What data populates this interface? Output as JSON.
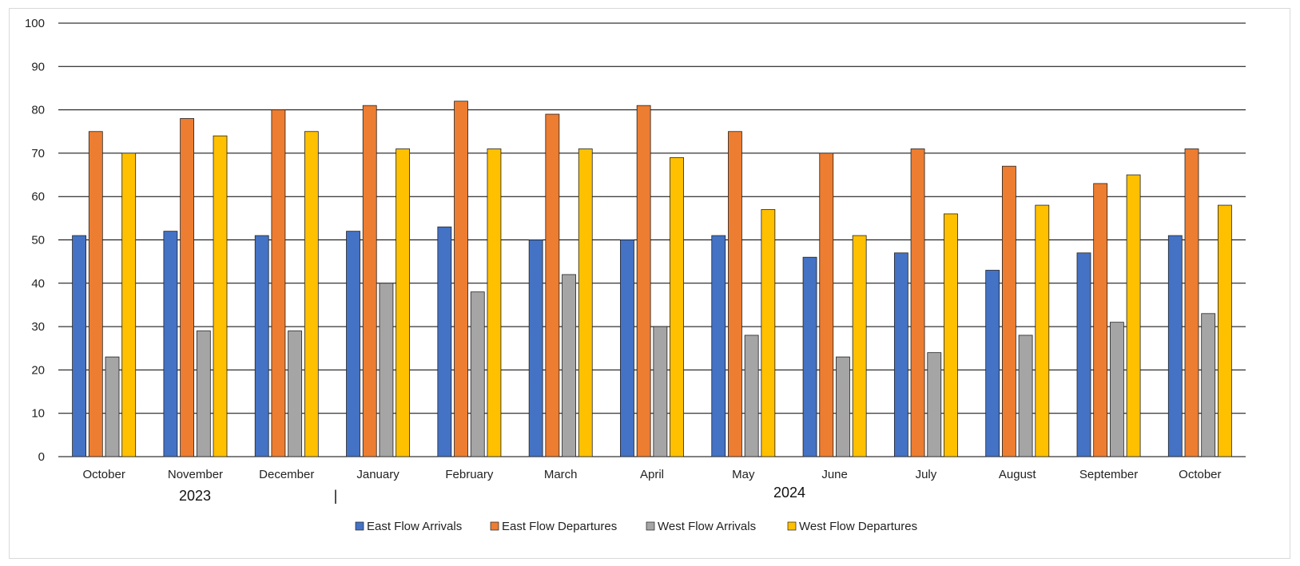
{
  "chart_data": {
    "type": "bar",
    "categories": [
      "October",
      "November",
      "December",
      "January",
      "February",
      "March",
      "April",
      "May",
      "June",
      "July",
      "August",
      "September",
      "October"
    ],
    "series": [
      {
        "name": "East Flow Arrivals",
        "color": "#4472c4",
        "values": [
          51,
          52,
          51,
          52,
          53,
          50,
          50,
          51,
          46,
          47,
          43,
          47,
          51
        ]
      },
      {
        "name": "East Flow Departures",
        "color": "#ed7d31",
        "values": [
          75,
          78,
          80,
          81,
          82,
          79,
          81,
          75,
          70,
          71,
          67,
          63,
          71
        ]
      },
      {
        "name": "West Flow Arrivals",
        "color": "#a5a5a5",
        "values": [
          23,
          29,
          29,
          40,
          38,
          42,
          30,
          28,
          23,
          24,
          28,
          31,
          33
        ]
      },
      {
        "name": "West Flow Departures",
        "color": "#ffc000",
        "values": [
          70,
          74,
          75,
          71,
          71,
          71,
          69,
          57,
          51,
          56,
          58,
          65,
          58
        ]
      }
    ],
    "year_labels": [
      "2023",
      "2024"
    ],
    "year_divider_text": "|",
    "ylim": [
      0,
      100
    ],
    "yticks": [
      0,
      10,
      20,
      30,
      40,
      50,
      60,
      70,
      80,
      90,
      100
    ],
    "grid": true,
    "legend_position": "bottom-center"
  }
}
